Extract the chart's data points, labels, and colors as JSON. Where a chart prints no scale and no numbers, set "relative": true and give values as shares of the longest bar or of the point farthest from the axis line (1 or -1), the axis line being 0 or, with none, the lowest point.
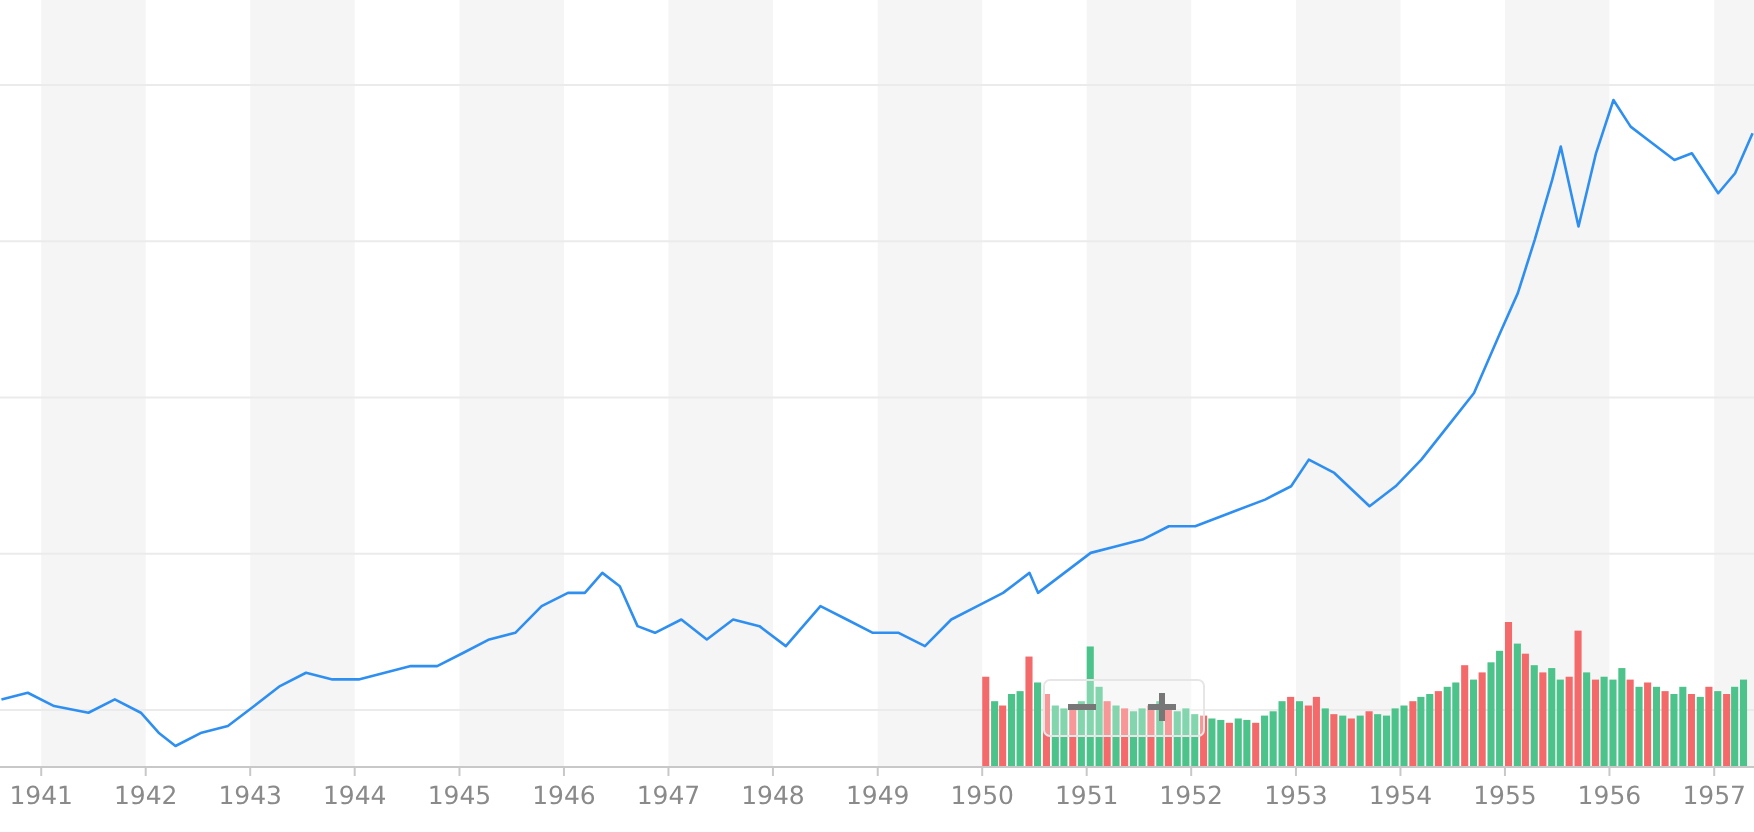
{
  "chart_data": [
    {
      "type": "line",
      "relative": true,
      "grid": "y",
      "tick_labels": "x",
      "line_style": "solid",
      "marker": "none",
      "xlim": [
        "1940-08-10",
        "1957-05-20"
      ],
      "xticks": [
        {
          "value": "1941-01-01",
          "label": "1941"
        },
        {
          "value": "1942-01-01",
          "label": "1942"
        },
        {
          "value": "1943-01-01",
          "label": "1943"
        },
        {
          "value": "1944-01-01",
          "label": "1944"
        },
        {
          "value": "1945-01-01",
          "label": "1945"
        },
        {
          "value": "1946-01-01",
          "label": "1946"
        },
        {
          "value": "1947-01-01",
          "label": "1947"
        },
        {
          "value": "1948-01-01",
          "label": "1948"
        },
        {
          "value": "1949-01-01",
          "label": "1949"
        },
        {
          "value": "1950-01-01",
          "label": "1950"
        },
        {
          "value": "1951-01-01",
          "label": "1951"
        },
        {
          "value": "1952-01-01",
          "label": "1952"
        },
        {
          "value": "1953-01-01",
          "label": "1953"
        },
        {
          "value": "1954-01-01",
          "label": "1954"
        },
        {
          "value": "1955-01-01",
          "label": "1955"
        },
        {
          "value": "1956-01-01",
          "label": "1956"
        },
        {
          "value": "1957-01-01",
          "label": "1957"
        }
      ],
      "bands": [
        {
          "axis": "x",
          "from": "1941-01-01",
          "to": "1942-01-01",
          "color": "#f5f5f5"
        },
        {
          "axis": "x",
          "from": "1943-01-01",
          "to": "1944-01-01",
          "color": "#f5f5f5"
        },
        {
          "axis": "x",
          "from": "1945-01-01",
          "to": "1946-01-01",
          "color": "#f5f5f5"
        },
        {
          "axis": "x",
          "from": "1947-01-01",
          "to": "1948-01-01",
          "color": "#f5f5f5"
        },
        {
          "axis": "x",
          "from": "1949-01-01",
          "to": "1950-01-01",
          "color": "#f5f5f5"
        },
        {
          "axis": "x",
          "from": "1951-01-01",
          "to": "1952-01-01",
          "color": "#f5f5f5"
        },
        {
          "axis": "x",
          "from": "1953-01-01",
          "to": "1954-01-01",
          "color": "#f5f5f5"
        },
        {
          "axis": "x",
          "from": "1955-01-01",
          "to": "1956-01-01",
          "color": "#f5f5f5"
        },
        {
          "axis": "x",
          "from": "1957-01-01",
          "to": "1957-05-20",
          "color": "#f5f5f5"
        }
      ],
      "series": [
        {
          "color": "#2f8ff0",
          "x": [
            "1940-08-15",
            "1940-11-15",
            "1941-02-15",
            "1941-06-15",
            "1941-09-15",
            "1941-12-15",
            "1942-02-15",
            "1942-04-15",
            "1942-07-15",
            "1942-10-15",
            "1943-01-15",
            "1943-04-15",
            "1943-07-15",
            "1943-10-15",
            "1944-01-15",
            "1944-04-15",
            "1944-07-15",
            "1944-10-15",
            "1945-01-15",
            "1945-04-15",
            "1945-07-15",
            "1945-10-15",
            "1946-01-15",
            "1946-03-15",
            "1946-05-15",
            "1946-07-15",
            "1946-09-15",
            "1946-11-15",
            "1947-02-15",
            "1947-05-15",
            "1947-08-15",
            "1947-11-15",
            "1948-02-15",
            "1948-06-15",
            "1948-09-15",
            "1948-12-15",
            "1949-03-15",
            "1949-06-15",
            "1949-09-15",
            "1949-12-15",
            "1950-03-15",
            "1950-06-15",
            "1950-07-15",
            "1950-10-15",
            "1951-01-15",
            "1951-04-15",
            "1951-07-15",
            "1951-10-15",
            "1952-01-15",
            "1952-05-15",
            "1952-09-15",
            "1952-12-15",
            "1953-02-15",
            "1953-05-15",
            "1953-09-15",
            "1953-12-15",
            "1954-03-15",
            "1954-06-15",
            "1954-09-15",
            "1954-12-15",
            "1955-02-15",
            "1955-04-15",
            "1955-06-15",
            "1955-07-15",
            "1955-09-15",
            "1955-11-15",
            "1956-01-15",
            "1956-03-15",
            "1956-05-15",
            "1956-08-15",
            "1956-10-15",
            "1957-01-15",
            "1957-03-15",
            "1957-05-15"
          ],
          "values": [
            0.1,
            0.11,
            0.09,
            0.08,
            0.1,
            0.08,
            0.05,
            0.03,
            0.05,
            0.06,
            0.09,
            0.12,
            0.14,
            0.13,
            0.13,
            0.14,
            0.15,
            0.15,
            0.17,
            0.19,
            0.2,
            0.24,
            0.26,
            0.26,
            0.29,
            0.27,
            0.21,
            0.2,
            0.22,
            0.19,
            0.22,
            0.21,
            0.18,
            0.24,
            0.22,
            0.2,
            0.2,
            0.18,
            0.22,
            0.24,
            0.26,
            0.29,
            0.26,
            0.29,
            0.32,
            0.33,
            0.34,
            0.36,
            0.36,
            0.38,
            0.4,
            0.42,
            0.46,
            0.44,
            0.39,
            0.42,
            0.46,
            0.51,
            0.56,
            0.65,
            0.71,
            0.79,
            0.88,
            0.93,
            0.81,
            0.92,
            1.0,
            0.96,
            0.94,
            0.91,
            0.92,
            0.86,
            0.89,
            0.95
          ]
        }
      ]
    },
    {
      "type": "bar",
      "relative": true,
      "tick_labels": false,
      "xlim": [
        "1940-08-10",
        "1957-05-20"
      ],
      "series": [
        {
          "x": [
            "1950-01",
            "1950-02",
            "1950-03",
            "1950-04",
            "1950-05",
            "1950-06",
            "1950-07",
            "1950-08",
            "1950-09",
            "1950-10",
            "1950-11",
            "1950-12",
            "1951-01",
            "1951-02",
            "1951-03",
            "1951-04",
            "1951-05",
            "1951-06",
            "1951-07",
            "1951-08",
            "1951-09",
            "1951-10",
            "1951-11",
            "1951-12",
            "1952-01",
            "1952-02",
            "1952-03",
            "1952-04",
            "1952-05",
            "1952-06",
            "1952-07",
            "1952-08",
            "1952-09",
            "1952-10",
            "1952-11",
            "1952-12",
            "1953-01",
            "1953-02",
            "1953-03",
            "1953-04",
            "1953-05",
            "1953-06",
            "1953-07",
            "1953-08",
            "1953-09",
            "1953-10",
            "1953-11",
            "1953-12",
            "1954-01",
            "1954-02",
            "1954-03",
            "1954-04",
            "1954-05",
            "1954-06",
            "1954-07",
            "1954-08",
            "1954-09",
            "1954-10",
            "1954-11",
            "1954-12",
            "1955-01",
            "1955-02",
            "1955-03",
            "1955-04",
            "1955-05",
            "1955-06",
            "1955-07",
            "1955-08",
            "1955-09",
            "1955-10",
            "1955-11",
            "1955-12",
            "1956-01",
            "1956-02",
            "1956-03",
            "1956-04",
            "1956-05",
            "1956-06",
            "1956-07",
            "1956-08",
            "1956-09",
            "1956-10",
            "1956-11",
            "1956-12",
            "1957-01",
            "1957-02",
            "1957-03",
            "1957-04"
          ],
          "values": [
            0.62,
            0.45,
            0.42,
            0.5,
            0.52,
            0.76,
            0.58,
            0.5,
            0.42,
            0.4,
            0.42,
            0.45,
            0.83,
            0.55,
            0.45,
            0.42,
            0.4,
            0.38,
            0.4,
            0.42,
            0.45,
            0.4,
            0.38,
            0.4,
            0.36,
            0.35,
            0.33,
            0.32,
            0.3,
            0.33,
            0.32,
            0.3,
            0.35,
            0.38,
            0.45,
            0.48,
            0.45,
            0.42,
            0.48,
            0.4,
            0.36,
            0.35,
            0.33,
            0.35,
            0.38,
            0.36,
            0.35,
            0.4,
            0.42,
            0.45,
            0.48,
            0.5,
            0.52,
            0.55,
            0.58,
            0.7,
            0.6,
            0.65,
            0.72,
            0.8,
            1.0,
            0.85,
            0.78,
            0.7,
            0.65,
            0.68,
            0.6,
            0.62,
            0.94,
            0.65,
            0.6,
            0.62,
            0.6,
            0.68,
            0.6,
            0.55,
            0.58,
            0.55,
            0.52,
            0.5,
            0.55,
            0.5,
            0.48,
            0.55,
            0.52,
            0.5,
            0.55,
            0.6
          ],
          "colors": [
            "#f46a6b",
            "#4cc38a",
            "#f46a6b",
            "#4cc38a",
            "#4cc38a",
            "#f46a6b",
            "#4cc38a",
            "#f46a6b",
            "#4cc38a",
            "#4cc38a",
            "#f46a6b",
            "#4cc38a",
            "#4cc38a",
            "#4cc38a",
            "#f46a6b",
            "#4cc38a",
            "#f46a6b",
            "#4cc38a",
            "#4cc38a",
            "#f46a6b",
            "#4cc38a",
            "#f46a6b",
            "#4cc38a",
            "#4cc38a",
            "#4cc38a",
            "#f46a6b",
            "#4cc38a",
            "#4cc38a",
            "#f46a6b",
            "#4cc38a",
            "#4cc38a",
            "#f46a6b",
            "#4cc38a",
            "#4cc38a",
            "#4cc38a",
            "#f46a6b",
            "#4cc38a",
            "#f46a6b",
            "#f46a6b",
            "#4cc38a",
            "#f46a6b",
            "#4cc38a",
            "#f46a6b",
            "#4cc38a",
            "#f46a6b",
            "#4cc38a",
            "#4cc38a",
            "#4cc38a",
            "#4cc38a",
            "#f46a6b",
            "#4cc38a",
            "#4cc38a",
            "#f46a6b",
            "#4cc38a",
            "#4cc38a",
            "#f46a6b",
            "#4cc38a",
            "#f46a6b",
            "#4cc38a",
            "#4cc38a",
            "#f46a6b",
            "#4cc38a",
            "#f46a6b",
            "#4cc38a",
            "#f46a6b",
            "#4cc38a",
            "#4cc38a",
            "#f46a6b",
            "#f46a6b",
            "#4cc38a",
            "#f46a6b",
            "#4cc38a",
            "#4cc38a",
            "#4cc38a",
            "#f46a6b",
            "#4cc38a",
            "#f46a6b",
            "#4cc38a",
            "#f46a6b",
            "#4cc38a",
            "#4cc38a",
            "#f46a6b",
            "#4cc38a",
            "#f46a6b",
            "#4cc38a",
            "#f46a6b",
            "#4cc38a",
            "#4cc38a"
          ]
        }
      ]
    }
  ]
}
